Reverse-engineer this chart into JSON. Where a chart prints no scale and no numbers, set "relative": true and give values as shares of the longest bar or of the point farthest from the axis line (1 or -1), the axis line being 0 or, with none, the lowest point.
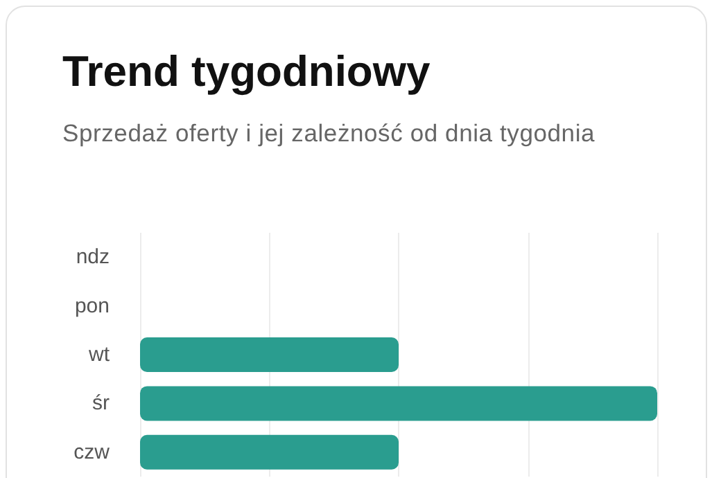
{
  "chart_data": {
    "type": "bar",
    "title": "Trend tygodniowy",
    "subtitle": "Sprzedaż oferty i jej zależność od dnia tygodnia",
    "categories": [
      "ndz",
      "pon",
      "wt",
      "śr",
      "czw"
    ],
    "orientation": "horizontal",
    "relative": true,
    "values": [
      0,
      0,
      0.5,
      1,
      0.5
    ],
    "color": "#2a9d8f",
    "grid": "x"
  }
}
